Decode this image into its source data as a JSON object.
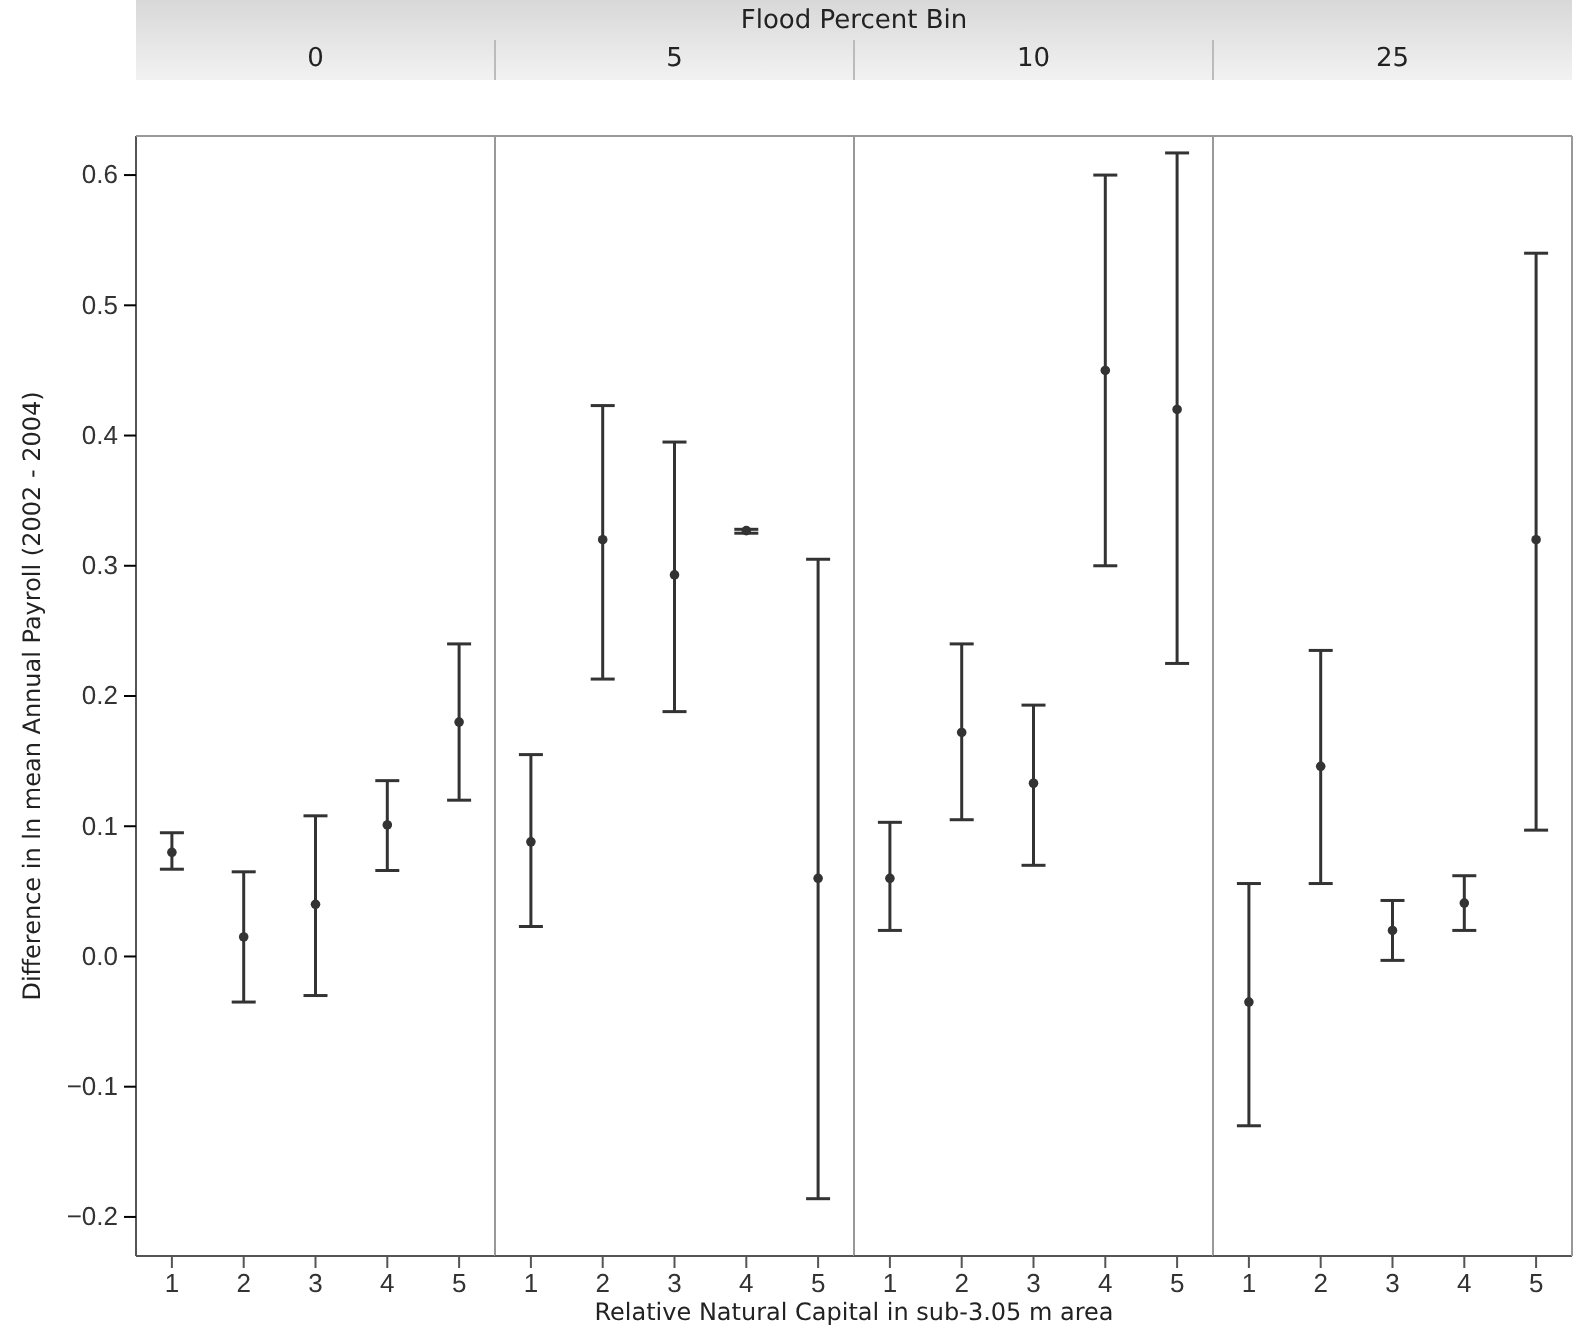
{
  "chart_data": [
    {
      "type": "scatter",
      "title": "0",
      "ylabel": "Difference in ln mean Annual Payroll (2002 - 2004)",
      "xlabel": "Relative Natural Capital in sub-3.05 m area",
      "annotations": [
        "Flood Percent Bin"
      ],
      "categories": [
        "1",
        "2",
        "3",
        "4",
        "5"
      ],
      "ylim": [
        -0.23,
        0.63
      ],
      "yticks": [
        -0.2,
        -0.1,
        {
          "value": 0,
          "label": "0.0"
        },
        0.1,
        0.2,
        0.3,
        0.4,
        0.5,
        0.6
      ],
      "marker": "circle",
      "grid": false,
      "series": [
        {
          "color": "#333333",
          "values": [
            0.08,
            0.015,
            0.04,
            0.101,
            0.18
          ],
          "errors": [
            [
              0.067,
              0.095
            ],
            [
              -0.035,
              0.065
            ],
            [
              -0.03,
              0.108
            ],
            [
              0.066,
              0.135
            ],
            [
              0.12,
              0.24
            ]
          ]
        }
      ]
    },
    {
      "type": "scatter",
      "title": "5",
      "categories": [
        "1",
        "2",
        "3",
        "4",
        "5"
      ],
      "ylim": [
        -0.23,
        0.63
      ],
      "tick_labels": "x",
      "marker": "circle",
      "grid": false,
      "series": [
        {
          "color": "#333333",
          "values": [
            0.088,
            0.32,
            0.293,
            0.327,
            0.06
          ],
          "errors": [
            [
              0.023,
              0.155
            ],
            [
              0.213,
              0.423
            ],
            [
              0.188,
              0.395
            ],
            [
              0.325,
              0.328
            ],
            [
              -0.186,
              0.305
            ]
          ]
        }
      ]
    },
    {
      "type": "scatter",
      "title": "10",
      "categories": [
        "1",
        "2",
        "3",
        "4",
        "5"
      ],
      "ylim": [
        -0.23,
        0.63
      ],
      "tick_labels": "x",
      "marker": "circle",
      "grid": false,
      "series": [
        {
          "color": "#333333",
          "values": [
            0.06,
            0.172,
            0.133,
            0.45,
            0.42
          ],
          "errors": [
            [
              0.02,
              0.103
            ],
            [
              0.105,
              0.24
            ],
            [
              0.07,
              0.193
            ],
            [
              0.3,
              0.6
            ],
            [
              0.225,
              0.617
            ]
          ]
        }
      ]
    },
    {
      "type": "scatter",
      "title": "25",
      "categories": [
        "1",
        "2",
        "3",
        "4",
        "5"
      ],
      "ylim": [
        -0.23,
        0.63
      ],
      "tick_labels": "x",
      "marker": "circle",
      "grid": false,
      "series": [
        {
          "color": "#333333",
          "values": [
            -0.035,
            0.146,
            0.02,
            0.041,
            0.32
          ],
          "errors": [
            [
              -0.13,
              0.056
            ],
            [
              0.056,
              0.235
            ],
            [
              -0.003,
              0.043
            ],
            [
              0.02,
              0.062
            ],
            [
              0.097,
              0.54
            ]
          ]
        }
      ]
    }
  ]
}
